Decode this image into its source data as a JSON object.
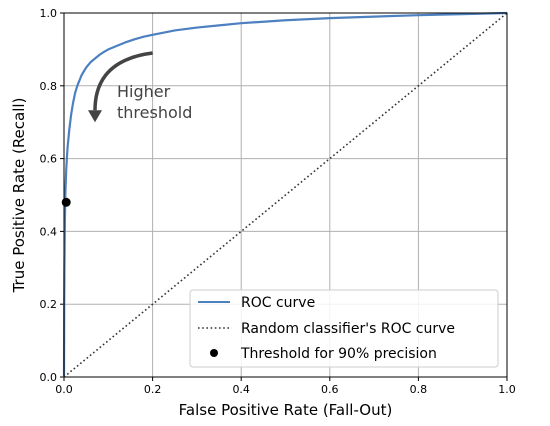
{
  "chart_data": {
    "type": "line",
    "xlabel": "False Positive Rate (Fall-Out)",
    "ylabel": "True Positive Rate (Recall)",
    "xlim": [
      0,
      1
    ],
    "ylim": [
      0,
      1
    ],
    "xticks": [
      "0.0",
      "0.2",
      "0.4",
      "0.6",
      "0.8",
      "1.0"
    ],
    "yticks": [
      "0.0",
      "0.2",
      "0.4",
      "0.6",
      "0.8",
      "1.0"
    ],
    "grid": true,
    "legend_position": "lower-right",
    "series": [
      {
        "name": "ROC curve",
        "style": "solid",
        "color": "#4c80c0",
        "x": [
          0,
          0.0005,
          0.001,
          0.002,
          0.003,
          0.005,
          0.008,
          0.012,
          0.016,
          0.02,
          0.025,
          0.03,
          0.04,
          0.05,
          0.06,
          0.07,
          0.08,
          0.09,
          0.1,
          0.12,
          0.14,
          0.16,
          0.18,
          0.2,
          0.25,
          0.3,
          0.35,
          0.4,
          0.5,
          0.6,
          0.7,
          0.8,
          0.9,
          1.0
        ],
        "y": [
          0,
          0.2,
          0.3,
          0.43,
          0.5,
          0.57,
          0.63,
          0.68,
          0.72,
          0.75,
          0.78,
          0.8,
          0.83,
          0.85,
          0.865,
          0.875,
          0.885,
          0.893,
          0.9,
          0.91,
          0.92,
          0.928,
          0.935,
          0.94,
          0.952,
          0.96,
          0.966,
          0.972,
          0.98,
          0.986,
          0.99,
          0.994,
          0.997,
          1.0
        ]
      },
      {
        "name": "Random classifier's ROC curve",
        "style": "dotted",
        "color": "#333333",
        "x": [
          0,
          1
        ],
        "y": [
          0,
          1
        ]
      },
      {
        "name": "Threshold for 90% precision",
        "style": "point",
        "color": "#000000",
        "x": [
          0.005
        ],
        "y": [
          0.48
        ]
      }
    ],
    "annotation": {
      "line1": "Higher",
      "line2": "threshold",
      "arrow_from": [
        0.2,
        0.89
      ],
      "arrow_to": [
        0.07,
        0.7
      ]
    }
  }
}
